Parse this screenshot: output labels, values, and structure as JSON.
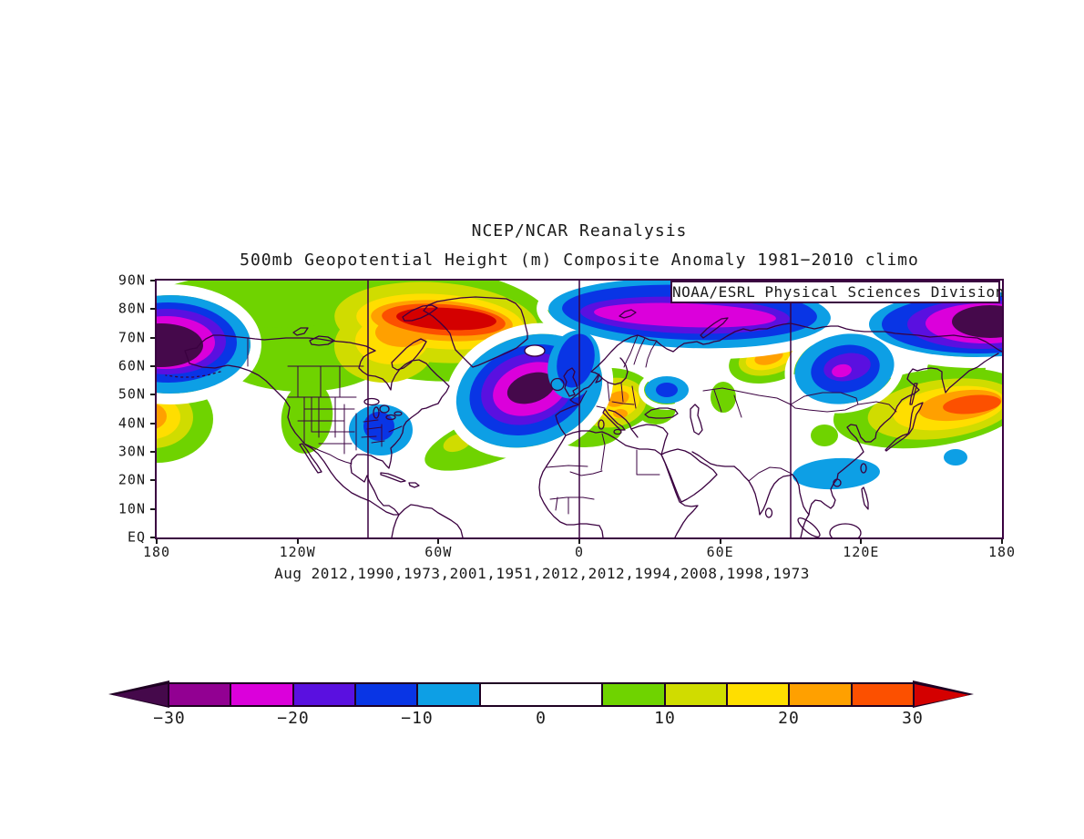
{
  "page": {
    "background": "#FFFFFF"
  },
  "title": {
    "line1": "NCEP/NCAR Reanalysis",
    "line2": "500mb Geopotential Height (m) Composite Anomaly 1981−2010 climo"
  },
  "credit": "NOAA/ESRL Physical Sciences Division",
  "caption": "Aug 2012,1990,1973,2001,1951,2012,2012,1994,2008,1998,1973",
  "axes": {
    "y_ticks": [
      "90N",
      "80N",
      "70N",
      "60N",
      "50N",
      "40N",
      "30N",
      "20N",
      "10N",
      "EQ"
    ],
    "x_ticks": [
      "180",
      "120W",
      "60W",
      "0",
      "60E",
      "120E",
      "180"
    ]
  },
  "colorbar": {
    "orientation": "horizontal",
    "extend": "both",
    "segments": [
      {
        "color_key": "m30_m25",
        "units": 1
      },
      {
        "color_key": "m25_m20",
        "units": 1
      },
      {
        "color_key": "m20_m15",
        "units": 1
      },
      {
        "color_key": "m15_m10",
        "units": 1
      },
      {
        "color_key": "m10_m5",
        "units": 1
      },
      {
        "color_key": "m5_5",
        "units": 2
      },
      {
        "color_key": "p5_10",
        "units": 1
      },
      {
        "color_key": "p10_15",
        "units": 1
      },
      {
        "color_key": "p15_20",
        "units": 1
      },
      {
        "color_key": "p20_25",
        "units": 1
      },
      {
        "color_key": "p25_30",
        "units": 1
      }
    ],
    "tick_labels": [
      {
        "text": "−30",
        "unit": 0
      },
      {
        "text": "−20",
        "unit": 2
      },
      {
        "text": "−10",
        "unit": 4
      },
      {
        "text": "0",
        "unit": 6
      },
      {
        "text": "10",
        "unit": 8
      },
      {
        "text": "20",
        "unit": 10
      },
      {
        "text": "30",
        "unit": 12
      }
    ]
  },
  "chart_data": {
    "type": "heatmap",
    "subtype": "filled-contour-composite-anomaly-map",
    "title": "NCEP/NCAR Reanalysis",
    "subtitle": "500mb Geopotential Height (m) Composite Anomaly 1981−2010 climo",
    "variable": "500mb Geopotential Height anomaly",
    "units": "m",
    "climatology": "1981−2010",
    "composite_month": "Aug",
    "composite_years": [
      2012,
      1990,
      1973,
      2001,
      1951,
      2012,
      2012,
      1994,
      2008,
      1998,
      1973
    ],
    "projection": {
      "type": "cylindrical-equidistant",
      "lon_range": [
        -180,
        180
      ],
      "lat_range": [
        0,
        90
      ]
    },
    "x_tick_labels": [
      "180",
      "120W",
      "60W",
      "0",
      "60E",
      "120E",
      "180"
    ],
    "y_tick_labels": [
      "90N",
      "80N",
      "70N",
      "60N",
      "50N",
      "40N",
      "30N",
      "20N",
      "10N",
      "EQ"
    ],
    "grid_meridians_deg": [
      -90,
      0,
      90
    ],
    "contour_levels_m": [
      -30,
      -25,
      -20,
      -15,
      -10,
      -5,
      5,
      10,
      15,
      20,
      25,
      30
    ],
    "palette": {
      "below_m30": "#45094B",
      "m30_m25": "#920092",
      "m25_m20": "#DB00DB",
      "m20_m15": "#5A10E0",
      "m15_m10": "#0935E5",
      "m10_m5": "#0D9FE5",
      "m5_5": "#FFFFFF",
      "p5_10": "#6FD300",
      "p10_15": "#D0DC00",
      "p15_20": "#FFDE00",
      "p20_25": "#FFA000",
      "p25_30": "#FC5000",
      "above_30": "#D40000",
      "coastline": "#3A0140",
      "frame": "#3A0140",
      "gap": "#FFFFFF"
    },
    "anomaly_centers": [
      {
        "lon": -180,
        "lat": 70,
        "value_m": -32,
        "region": "Bering/dateline Arctic low"
      },
      {
        "lon": -20,
        "lat": 52,
        "value_m": -32,
        "region": "North Atlantic low"
      },
      {
        "lon": 25,
        "lat": 80,
        "value_m": -23,
        "region": "Svalbard/Barents band low"
      },
      {
        "lon": 170,
        "lat": 75,
        "value_m": -32,
        "region": "East Siberian Arctic low"
      },
      {
        "lon": 107,
        "lat": 55,
        "value_m": -26,
        "region": "Lake Baikal low"
      },
      {
        "lon": -87,
        "lat": 38,
        "value_m": -13,
        "region": "US Midwest low"
      },
      {
        "lon": 105,
        "lat": 22,
        "value_m": -7,
        "region": "Southeast Asia"
      },
      {
        "lon": 37,
        "lat": 52,
        "value_m": -8,
        "region": "western Russia"
      },
      {
        "lon": 156,
        "lat": 29,
        "value_m": -6,
        "region": "west Pacific spot"
      },
      {
        "lon": -52,
        "lat": 77,
        "value_m": 33,
        "region": "Greenland/Baffin high"
      },
      {
        "lon": 14,
        "lat": 47,
        "value_m": 22,
        "region": "central Europe high"
      },
      {
        "lon": 78,
        "lat": 63,
        "value_m": 22,
        "region": "west Siberia high"
      },
      {
        "lon": 152,
        "lat": 43,
        "value_m": 27,
        "region": "NW Pacific high"
      },
      {
        "lon": -178,
        "lat": 43,
        "value_m": 22,
        "region": "NE Pacific high (wraps dateline)"
      }
    ],
    "colorbar_tick_labels": [
      "−30",
      "−20",
      "−10",
      "0",
      "10",
      "20",
      "30"
    ]
  }
}
